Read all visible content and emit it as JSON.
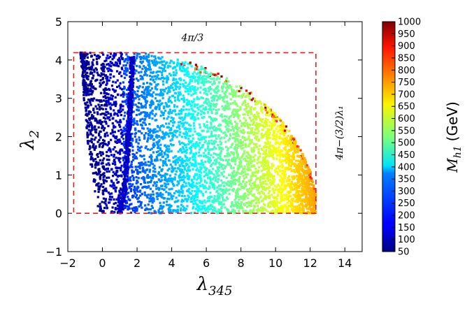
{
  "chart_data": {
    "type": "scatter",
    "title": "",
    "xlabel": "λ",
    "xlabel_sub": "345",
    "ylabel": "λ",
    "ylabel_sub": "2",
    "xlim": [
      -2,
      15
    ],
    "ylim": [
      -1,
      5
    ],
    "xticks": [
      "−2",
      "0",
      "2",
      "4",
      "6",
      "8",
      "10",
      "12",
      "14"
    ],
    "yticks": [
      "−1",
      "0",
      "1",
      "2",
      "3",
      "4",
      "5"
    ],
    "grid": false,
    "colormap": "jet",
    "colorbar": {
      "label": "M",
      "label_sub": "h1",
      "label_unit": "(GeV)",
      "range": [
        50,
        1000
      ],
      "ticks": [
        "50",
        "100",
        "150",
        "200",
        "250",
        "300",
        "350",
        "400",
        "450",
        "500",
        "550",
        "600",
        "650",
        "700",
        "750",
        "800",
        "850",
        "900",
        "950",
        "1000"
      ]
    },
    "constraint_box": {
      "color": "#e02020",
      "x_range": [
        -1.66,
        12.33
      ],
      "y_range": [
        0,
        4.19
      ],
      "top_label": "4π/3",
      "right_label": "4π−(3/2)λ₁"
    },
    "region": {
      "lower_edge_note": "allowed points fill region bounded by parabola-like lower edge near λ345≈0 and falling upper edge from (1.5, 4.19) to (12.3, 0)",
      "mass_trend": "mass increases from ~50 GeV (left, dark blue) to ~1000 GeV (right edge, red)"
    }
  }
}
